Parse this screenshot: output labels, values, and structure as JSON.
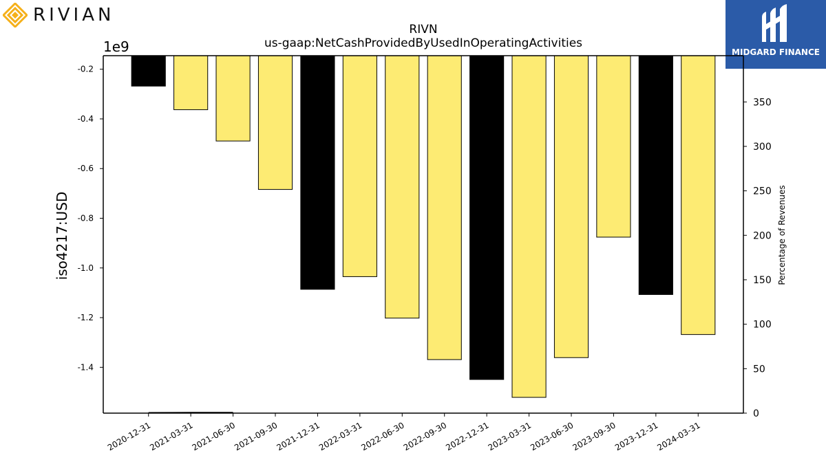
{
  "brand_left": {
    "name": "RIVIAN",
    "color": "#f5b01a"
  },
  "brand_right": {
    "name": "MIDGARD FINANCE",
    "bg_color": "#2b5ba8"
  },
  "chart_data": {
    "type": "bar",
    "title": "RIVN",
    "subtitle": "us-gaap:NetCashProvidedByUsedInOperatingActivities",
    "ylabel": "iso4217:USD",
    "y_offset_label": "1e9",
    "ylabel_right": "Percentage of Revenues",
    "categories": [
      "2020-12-31",
      "2021-03-31",
      "2021-06-30",
      "2021-09-30",
      "2021-12-31",
      "2022-03-31",
      "2022-06-30",
      "2022-09-30",
      "2022-12-31",
      "2023-03-31",
      "2023-06-30",
      "2023-09-30",
      "2023-12-31",
      "2024-03-31"
    ],
    "values": [
      -0.268,
      -0.363,
      -0.489,
      -0.684,
      -1.086,
      -1.035,
      -1.202,
      -1.369,
      -1.449,
      -1.521,
      -1.361,
      -0.876,
      -1.107,
      -1.268
    ],
    "bar_colors": [
      "#000000",
      "#fdeb73",
      "#fdeb73",
      "#fdeb73",
      "#000000",
      "#fdeb73",
      "#fdeb73",
      "#fdeb73",
      "#000000",
      "#fdeb73",
      "#fdeb73",
      "#fdeb73",
      "#000000",
      "#fdeb73"
    ],
    "yticks": [
      "-0.2",
      "-0.4",
      "-0.6",
      "-0.8",
      "-1.0",
      "-1.2",
      "-1.4"
    ],
    "ytick_values": [
      -0.2,
      -0.4,
      -0.6,
      -0.8,
      -1.0,
      -1.2,
      -1.4
    ],
    "ylim": [
      -1.5845,
      -0.1455
    ],
    "yticks_right": [
      "0",
      "50",
      "100",
      "150",
      "200",
      "250",
      "300",
      "350"
    ],
    "ytick_right_values": [
      0,
      50,
      100,
      150,
      200,
      250,
      300,
      350
    ],
    "ylim_right": [
      0,
      402
    ],
    "pct_series": [
      0.4,
      0.6,
      0.6
    ],
    "grid": false,
    "legend": "none"
  }
}
